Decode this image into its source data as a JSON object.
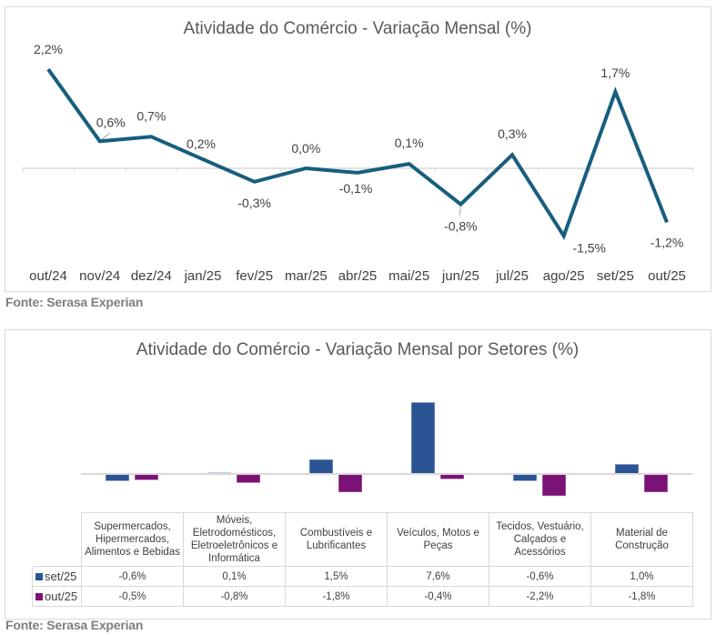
{
  "chart_data": [
    {
      "type": "line",
      "title": "Atividade do Comércio - Variação Mensal (%)",
      "xlabel": "",
      "ylabel": "",
      "categories": [
        "out/24",
        "nov/24",
        "dez/24",
        "jan/25",
        "fev/25",
        "mar/25",
        "abr/25",
        "mai/25",
        "jun/25",
        "jul/25",
        "ago/25",
        "set/25",
        "out/25"
      ],
      "series": [
        {
          "name": "Variação Mensal",
          "color": "#175E7E",
          "values": [
            2.2,
            0.6,
            0.7,
            0.2,
            -0.3,
            0.0,
            -0.1,
            0.1,
            -0.8,
            0.3,
            -1.5,
            1.7,
            -1.2
          ],
          "labels": [
            "2,2%",
            "0,6%",
            "0,7%",
            "0,2%",
            "-0,3%",
            "0,0%",
            "-0,1%",
            "0,1%",
            "-0,8%",
            "0,3%",
            "-1,5%",
            "1,7%",
            "-1,2%"
          ]
        }
      ],
      "ylim": [
        -2.0,
        2.6
      ],
      "grid": false,
      "legend": "none",
      "source": "Fonte: Serasa Experian"
    },
    {
      "type": "bar",
      "title": "Atividade do Comércio - Variação Mensal por Setores (%)",
      "xlabel": "",
      "ylabel": "",
      "categories": [
        [
          "Supermercados,",
          "Hipermercados,",
          "Alimentos e Bebidas"
        ],
        [
          "Móveis,",
          "Eletrodomésticos,",
          "Eletroeletrônicos e",
          "Informática"
        ],
        [
          "Combustíveis e",
          "Lubrificantes"
        ],
        [
          "Veículos, Motos e",
          "Peças"
        ],
        [
          "Tecidos, Vestuário,",
          "Calçados e",
          "Acessórios"
        ],
        [
          "Material de",
          "Construção"
        ]
      ],
      "series": [
        {
          "name": "set/25",
          "color": "#2A5494",
          "values": [
            -0.6,
            0.1,
            1.5,
            7.6,
            -0.6,
            1.0
          ],
          "labels": [
            "-0,6%",
            "0,1%",
            "1,5%",
            "7,6%",
            "-0,6%",
            "1,0%"
          ]
        },
        {
          "name": "out/25",
          "color": "#7B1275",
          "values": [
            -0.5,
            -0.8,
            -1.8,
            -0.4,
            -2.2,
            -1.8
          ],
          "labels": [
            "-0,5%",
            "-0,8%",
            "-1,8%",
            "-0,4%",
            "-2,2%",
            "-1,8%"
          ]
        }
      ],
      "ylim": [
        -3,
        10
      ],
      "grid": false,
      "legend": "data-table",
      "source": "Fonte: Serasa Experian"
    }
  ]
}
